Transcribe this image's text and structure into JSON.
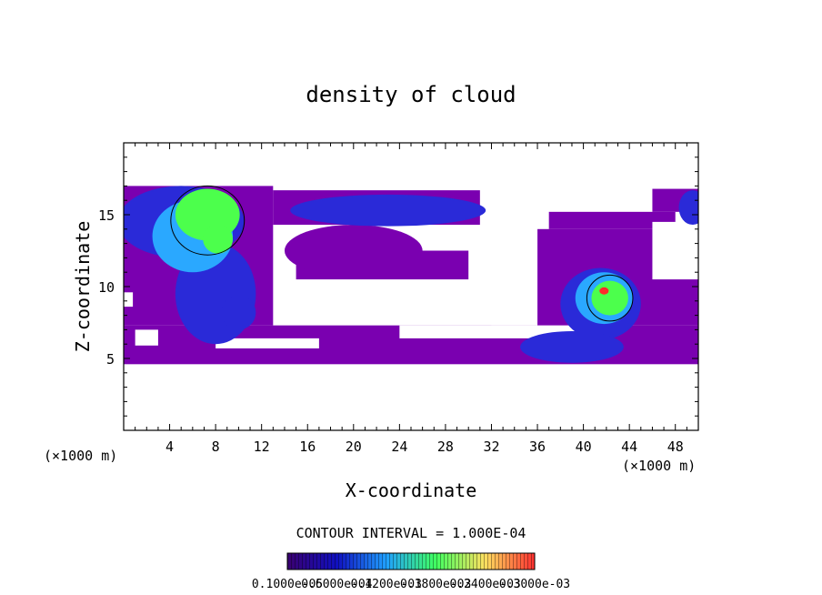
{
  "chart_data": {
    "type": "heatmap",
    "title": "density of cloud",
    "xlabel": "X-coordinate",
    "ylabel": "Z-coordinate",
    "x_unit": "(×1000 m)",
    "y_unit": "(×1000 m)",
    "xlim": [
      0,
      50
    ],
    "ylim": [
      0,
      20
    ],
    "x_ticks": [
      "4",
      "8",
      "12",
      "16",
      "20",
      "24",
      "28",
      "32",
      "36",
      "40",
      "44",
      "48"
    ],
    "y_ticks": [
      "5",
      "10",
      "15"
    ],
    "contour_interval_text": "CONTOUR INTERVAL = 1.000E-04",
    "colorbar_labels_text": "0.1000e-05",
    "colorbar_labels_overlap": [
      "0.1000e-05",
      "0.6000e-04",
      "0.1200e-03",
      "0.1800e-03",
      "0.2400e-03",
      "0.3000e-03"
    ],
    "colors": {
      "background": "#ffffff",
      "low": "#7a00b0",
      "mid": "#2a2ad8",
      "high": "#4cff4c",
      "peak": "#ff2a2a"
    },
    "regions_description": [
      {
        "name": "left-upper-cloud",
        "x": [
          0,
          13
        ],
        "z": [
          4.5,
          17
        ],
        "max_level": "high"
      },
      {
        "name": "top-band",
        "x": [
          13,
          40
        ],
        "z": [
          11,
          17
        ],
        "max_level": "mid"
      },
      {
        "name": "right-cloud",
        "x": [
          36,
          50
        ],
        "z": [
          4.5,
          17
        ],
        "max_level": "high"
      }
    ]
  }
}
